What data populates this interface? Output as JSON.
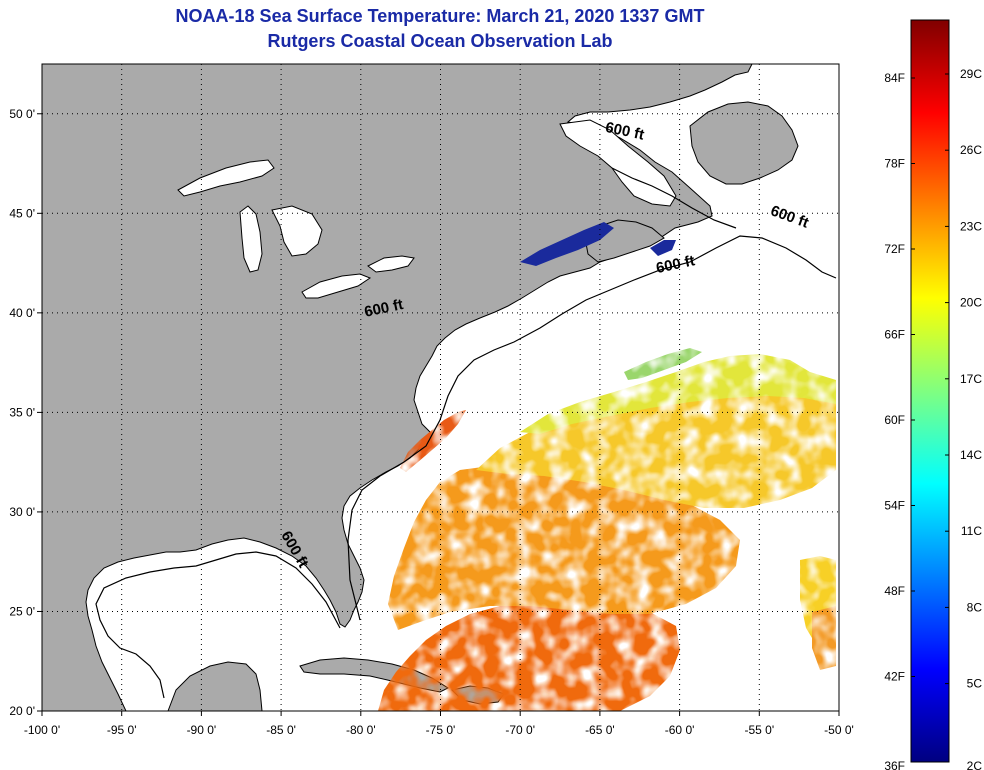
{
  "title": "NOAA-18 Sea Surface Temperature:  March 21, 2020 1337 GMT",
  "subtitle": "Rutgers Coastal Ocean Observation Lab",
  "map": {
    "lon_range": [
      -100,
      -50
    ],
    "lat_range": [
      20,
      52.5
    ],
    "lon_ticks": [
      "-100 0'",
      "-95 0'",
      "-90 0'",
      "-85 0'",
      "-80 0'",
      "-75 0'",
      "-70 0'",
      "-65 0'",
      "-60 0'",
      "-55 0'",
      "-50 0'"
    ],
    "lat_ticks": [
      "20 0'",
      "25 0'",
      "30 0'",
      "35 0'",
      "40 0'",
      "45 0'",
      "50 0'"
    ],
    "land_color": "#aaaaaa",
    "water_color": "#ffffff",
    "grid": "dotted",
    "contour_labels": [
      {
        "text": "600 ft",
        "lon": -78.5,
        "lat": 40.0
      },
      {
        "text": "600 ft",
        "lon": -60.2,
        "lat": 42.2
      },
      {
        "text": "600 ft",
        "lon": -53.2,
        "lat": 44.6
      },
      {
        "text": "600 ft",
        "lon": -63.5,
        "lat": 48.9
      },
      {
        "text": "600 ft",
        "lon": -84.4,
        "lat": 28.0
      }
    ]
  },
  "colorbar": {
    "f_labels": [
      "84F",
      "78F",
      "72F",
      "66F",
      "60F",
      "54F",
      "48F",
      "42F",
      "36F"
    ],
    "c_labels": [
      "29C",
      "26C",
      "23C",
      "20C",
      "17C",
      "14C",
      "11C",
      "8C",
      "5C",
      "2C"
    ],
    "colors": [
      "#000080",
      "#0000ff",
      "#0080ff",
      "#00ffff",
      "#80ff80",
      "#ffff00",
      "#ff8000",
      "#ff0000",
      "#800000"
    ]
  }
}
